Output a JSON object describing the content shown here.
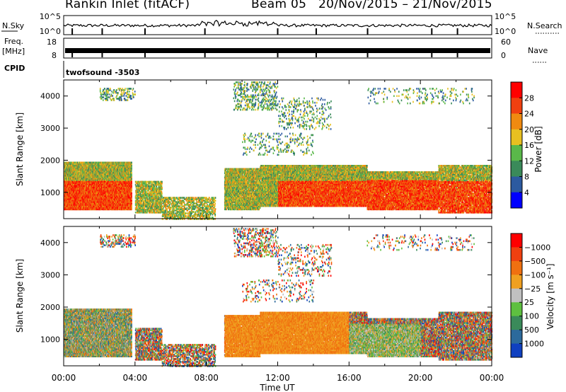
{
  "title": {
    "station": "Rankin Inlet (fitACF)",
    "beam": "Beam 05",
    "dates": "20/Nov/2015 – 21/Nov/2015"
  },
  "top_panels": {
    "nsky_label": "N.Sky",
    "nsky_ticks": [
      "10^5",
      "10^0"
    ],
    "nsearch_label": "N.Search",
    "nsearch_ticks": [
      "10^5",
      "10^0"
    ],
    "freq_label": "Freq.",
    "freq_unit": "[MHz]",
    "freq_ticks": [
      "18",
      "8"
    ],
    "nave_label": "Nave",
    "nave_ticks": [
      "60",
      "0"
    ],
    "cpid_label": "CPID",
    "cpid_value": "twofsound -3503"
  },
  "chart_data": [
    {
      "type": "heatmap",
      "name": "power-panel",
      "ylabel": "Slant Range [km]",
      "yticks": [
        1000,
        2000,
        3000,
        4000
      ],
      "ylim": [
        180,
        4500
      ],
      "xlim": [
        0,
        24
      ],
      "colorbar": {
        "label": "Power [dB]",
        "ticks": [
          "4",
          "8",
          "12",
          "16",
          "20",
          "24",
          "28"
        ],
        "colors": [
          "#0000ff",
          "#2c5aa0",
          "#3a8a5a",
          "#5ab84a",
          "#e8c020",
          "#f08a10",
          "#f04010",
          "#ff0000"
        ]
      }
    },
    {
      "type": "heatmap",
      "name": "velocity-panel",
      "ylabel": "Slant Range [km]",
      "yticks": [
        1000,
        2000,
        3000,
        4000
      ],
      "ylim": [
        180,
        4500
      ],
      "xlim": [
        0,
        24
      ],
      "xlabel": "Time UT",
      "xticks": [
        "00:00",
        "04:00",
        "08:00",
        "12:00",
        "16:00",
        "20:00",
        "00:00"
      ],
      "colorbar": {
        "label": "Velocity [m s⁻¹]",
        "ticks": [
          "1000",
          "500",
          "100",
          "25",
          "−25",
          "−100",
          "−500",
          "−1000"
        ],
        "colors": [
          "#1040c0",
          "#2c6a9c",
          "#3a8a5a",
          "#5ec040",
          "#c0c0c0",
          "#f0a020",
          "#f07010",
          "#f04010",
          "#ff0000"
        ]
      }
    }
  ]
}
